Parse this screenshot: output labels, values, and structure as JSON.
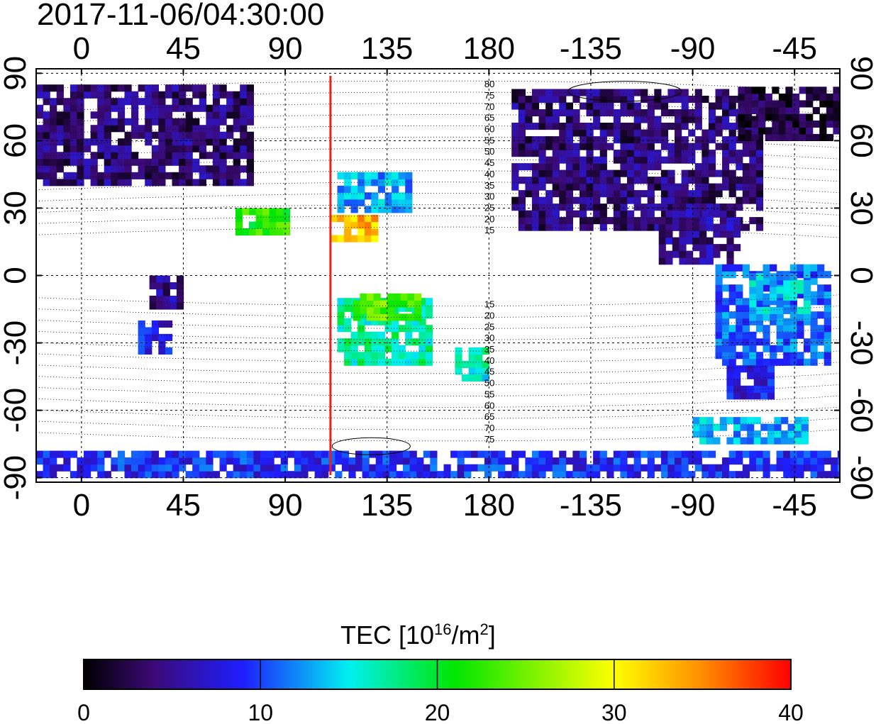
{
  "timestamp": "2017-11-06/04:30:00",
  "map": {
    "lon_ticks": [
      {
        "lon": 0,
        "label": "0"
      },
      {
        "lon": 45,
        "label": "45"
      },
      {
        "lon": 90,
        "label": "90"
      },
      {
        "lon": 135,
        "label": "135"
      },
      {
        "lon": 180,
        "label": "180"
      },
      {
        "lon": 225,
        "label": "-135"
      },
      {
        "lon": 270,
        "label": "-90"
      },
      {
        "lon": 315,
        "label": "-45"
      }
    ],
    "lat_ticks": [
      {
        "lat": 90,
        "label": "90"
      },
      {
        "lat": 60,
        "label": "60"
      },
      {
        "lat": 30,
        "label": "30"
      },
      {
        "lat": 0,
        "label": "0"
      },
      {
        "lat": -30,
        "label": "-30"
      },
      {
        "lat": -60,
        "label": "-60"
      },
      {
        "lat": -90,
        "label": "-90"
      }
    ],
    "lon_range": [
      -20,
      335
    ],
    "lat_range": [
      -92,
      92
    ],
    "grid": true,
    "terminator_lon": 110,
    "terminator_color": "#e8211d",
    "contour_labels_north": [
      "80",
      "75",
      "70",
      "65",
      "60",
      "55",
      "50",
      "45",
      "40",
      "35",
      "30",
      "25",
      "20",
      "15"
    ],
    "contour_labels_south": [
      "15",
      "20",
      "25",
      "30",
      "35",
      "40",
      "45",
      "50",
      "55",
      "60",
      "65",
      "70",
      "75"
    ],
    "tec_regions": [
      {
        "name": "europe-russia",
        "lon": [
          -20,
          75
        ],
        "lat": [
          40,
          85
        ],
        "tec": 4
      },
      {
        "name": "north-america",
        "lon": [
          190,
          300
        ],
        "lat": [
          20,
          82
        ],
        "tec": 4
      },
      {
        "name": "greenland",
        "lon": [
          290,
          340
        ],
        "lat": [
          60,
          84
        ],
        "tec": 2
      },
      {
        "name": "central-america",
        "lon": [
          255,
          290
        ],
        "lat": [
          5,
          30
        ],
        "tec": 5
      },
      {
        "name": "south-america",
        "lon": [
          280,
          330
        ],
        "lat": [
          -40,
          5
        ],
        "tec": 11
      },
      {
        "name": "brazil-core",
        "lon": [
          295,
          320
        ],
        "lat": [
          -20,
          0
        ],
        "tec": 14
      },
      {
        "name": "patagonia",
        "lon": [
          285,
          305
        ],
        "lat": [
          -55,
          -40
        ],
        "tec": 8
      },
      {
        "name": "australia",
        "lon": [
          113,
          154
        ],
        "lat": [
          -40,
          -12
        ],
        "tec": 17
      },
      {
        "name": "north-australia",
        "lon": [
          120,
          150
        ],
        "lat": [
          -20,
          -10
        ],
        "tec": 24
      },
      {
        "name": "new-zealand",
        "lon": [
          165,
          180
        ],
        "lat": [
          -47,
          -34
        ],
        "tec": 16
      },
      {
        "name": "japan-china",
        "lon": [
          113,
          145
        ],
        "lat": [
          28,
          45
        ],
        "tec": 13
      },
      {
        "name": "southeast-asia",
        "lon": [
          110,
          130
        ],
        "lat": [
          15,
          25
        ],
        "tec": 33
      },
      {
        "name": "india",
        "lon": [
          68,
          90
        ],
        "lat": [
          18,
          30
        ],
        "tec": 22
      },
      {
        "name": "africa-south",
        "lon": [
          25,
          40
        ],
        "lat": [
          -35,
          -22
        ],
        "tec": 8
      },
      {
        "name": "east-africa",
        "lon": [
          30,
          45
        ],
        "lat": [
          -15,
          0
        ],
        "tec": 5
      },
      {
        "name": "antarctica-south",
        "lon": [
          -20,
          335
        ],
        "lat": [
          -90,
          -78
        ],
        "tec": 9
      },
      {
        "name": "antarctica-peninsula",
        "lon": [
          270,
          320
        ],
        "lat": [
          -75,
          -65
        ],
        "tec": 13
      }
    ]
  },
  "colorbar": {
    "title_base": "TEC  [10",
    "title_exp": "16",
    "title_mid": "/m",
    "title_exp2": "2",
    "title_end": "]",
    "min": 0,
    "max": 40,
    "ticks": [
      {
        "value": 0,
        "label": "0"
      },
      {
        "value": 10,
        "label": "10"
      },
      {
        "value": 20,
        "label": "20"
      },
      {
        "value": 30,
        "label": "30"
      },
      {
        "value": 40,
        "label": "40"
      }
    ],
    "stops": [
      {
        "value": 0,
        "color": "#000000"
      },
      {
        "value": 4,
        "color": "#3c0a78"
      },
      {
        "value": 9,
        "color": "#1e1eff"
      },
      {
        "value": 15,
        "color": "#00f0f0"
      },
      {
        "value": 21,
        "color": "#00e600"
      },
      {
        "value": 30,
        "color": "#ffff00"
      },
      {
        "value": 35,
        "color": "#ff8c00"
      },
      {
        "value": 40,
        "color": "#ff0000"
      }
    ]
  }
}
